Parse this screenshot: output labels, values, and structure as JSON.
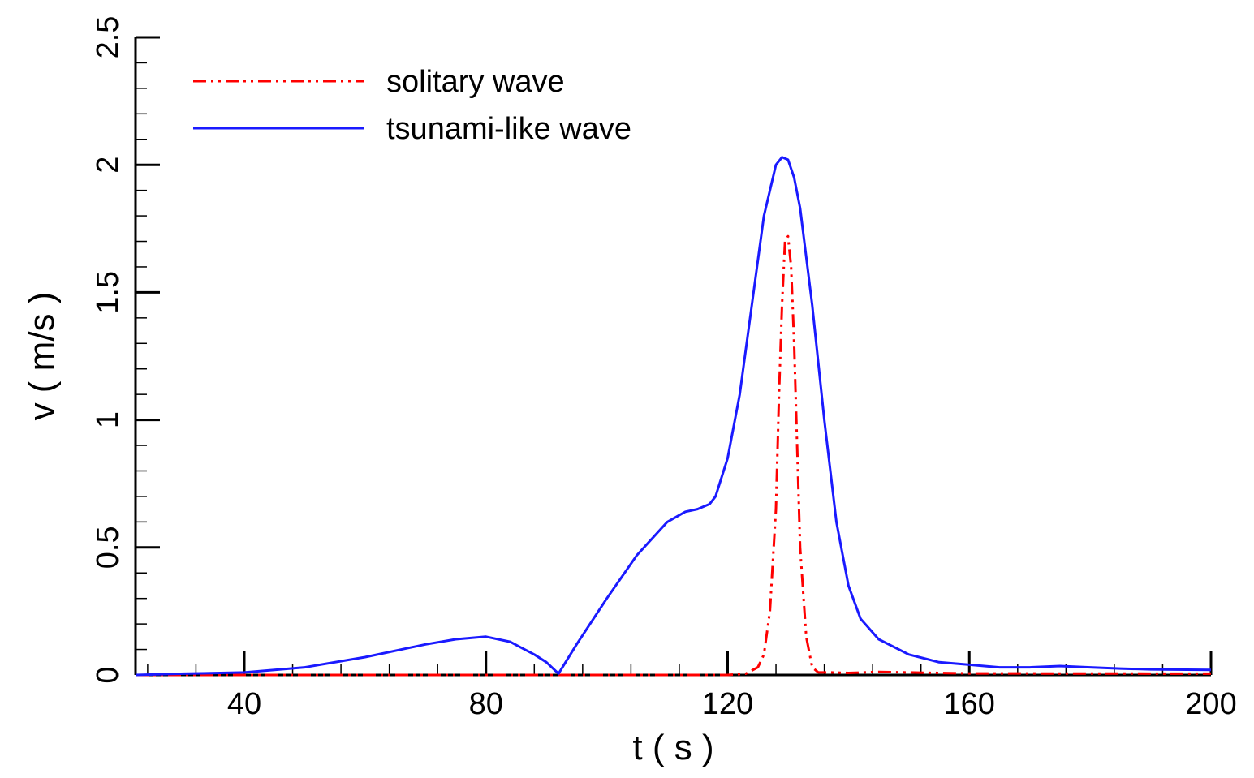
{
  "chart_data": {
    "type": "line",
    "title": "",
    "xlabel": "t ( s )",
    "ylabel": "v ( m/s )",
    "xlim": [
      22,
      200
    ],
    "ylim": [
      0,
      2.5
    ],
    "grid": false,
    "legend_position": "top-left",
    "x_ticks": [
      {
        "value": 40,
        "label": "40"
      },
      {
        "value": 80,
        "label": "80"
      },
      {
        "value": 120,
        "label": "120"
      },
      {
        "value": 160,
        "label": "160"
      },
      {
        "value": 200,
        "label": "200"
      }
    ],
    "y_ticks": [
      {
        "value": 0,
        "label": "0"
      },
      {
        "value": 0.5,
        "label": "0.5"
      },
      {
        "value": 1,
        "label": "1"
      },
      {
        "value": 1.5,
        "label": "1.5"
      },
      {
        "value": 2,
        "label": "2"
      },
      {
        "value": 2.5,
        "label": "2.5"
      }
    ],
    "series": [
      {
        "name": "solitary wave",
        "color": "#ff0000",
        "style": "dash-dot-dot",
        "x": [
          22,
          100,
          120,
          123,
          125,
          126,
          127,
          128,
          128.5,
          129,
          129.5,
          130,
          130.5,
          131,
          131.5,
          132,
          133,
          134,
          135,
          137,
          140,
          145,
          150,
          155,
          160,
          200
        ],
        "y": [
          0,
          0,
          0,
          0.005,
          0.03,
          0.08,
          0.25,
          0.65,
          1.1,
          1.45,
          1.7,
          1.72,
          1.6,
          1.3,
          0.9,
          0.5,
          0.15,
          0.03,
          0.01,
          0.01,
          0.008,
          0.012,
          0.01,
          0.008,
          0.006,
          0.005
        ]
      },
      {
        "name": "tsunami-like wave",
        "color": "#1a1aff",
        "style": "solid",
        "x": [
          22,
          30,
          40,
          50,
          60,
          70,
          75,
          80,
          84,
          88,
          90,
          92,
          95,
          100,
          105,
          110,
          113,
          115,
          117,
          118,
          120,
          122,
          124,
          126,
          128,
          129,
          130,
          131,
          132,
          134,
          136,
          138,
          140,
          142,
          145,
          150,
          155,
          160,
          165,
          170,
          175,
          180,
          185,
          190,
          200
        ],
        "y": [
          0,
          0.005,
          0.01,
          0.03,
          0.07,
          0.12,
          0.14,
          0.15,
          0.13,
          0.08,
          0.05,
          0.005,
          0.12,
          0.3,
          0.47,
          0.6,
          0.64,
          0.65,
          0.67,
          0.7,
          0.85,
          1.1,
          1.45,
          1.8,
          2.0,
          2.03,
          2.02,
          1.95,
          1.83,
          1.45,
          1.0,
          0.6,
          0.35,
          0.22,
          0.14,
          0.08,
          0.05,
          0.04,
          0.03,
          0.03,
          0.035,
          0.03,
          0.025,
          0.022,
          0.02
        ]
      }
    ]
  }
}
